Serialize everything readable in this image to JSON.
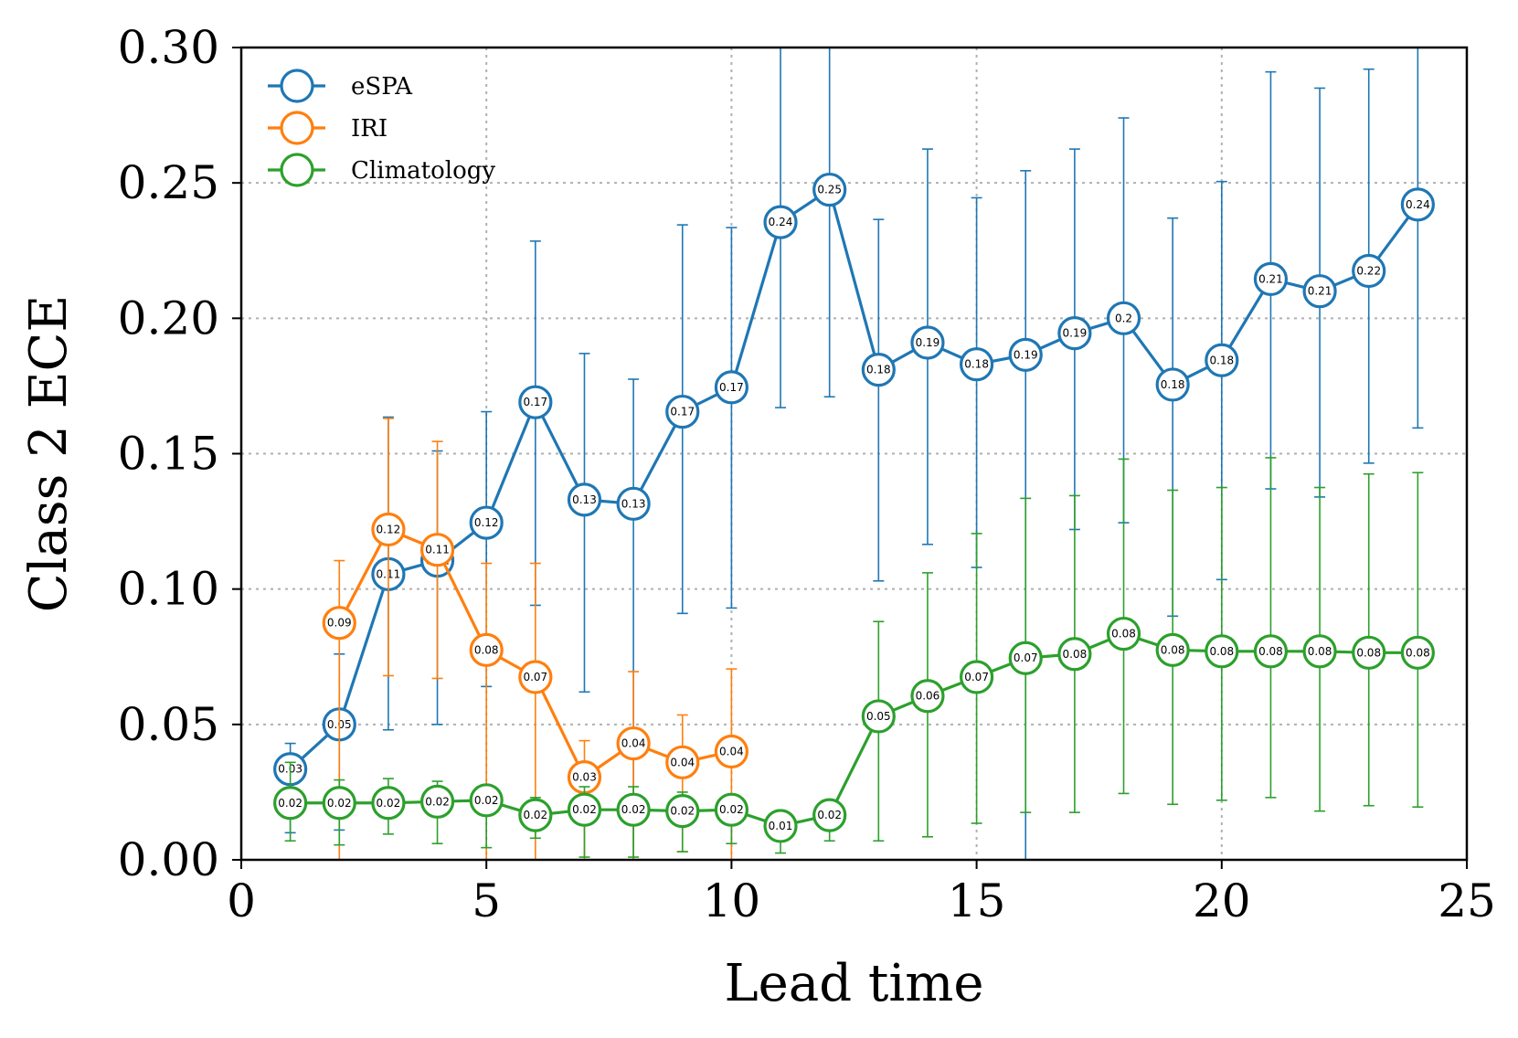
{
  "chart_data": {
    "type": "line",
    "title": "",
    "xlabel": "Lead time",
    "ylabel": "Class 2 ECE",
    "xlim": [
      0,
      25
    ],
    "ylim": [
      0,
      0.3
    ],
    "xticks": [
      0,
      5,
      10,
      15,
      20,
      25
    ],
    "xtick_labels": [
      "0",
      "5",
      "10",
      "15",
      "20",
      "25"
    ],
    "yticks": [
      0,
      0.05,
      0.1,
      0.15,
      0.2,
      0.25,
      0.3
    ],
    "ytick_labels": [
      "0.00",
      "0.05",
      "0.10",
      "0.15",
      "0.20",
      "0.25",
      "0.30"
    ],
    "grid": true,
    "legend_position": "top-left",
    "series": [
      {
        "name": "eSPA",
        "color": "#1f77b4",
        "x": [
          1,
          2,
          3,
          4,
          5,
          6,
          7,
          8,
          9,
          10,
          11,
          12,
          13,
          14,
          15,
          16,
          17,
          18,
          19,
          20,
          21,
          22,
          23,
          24
        ],
        "values": [
          0.0335,
          0.05,
          0.1055,
          0.1105,
          0.1245,
          0.169,
          0.133,
          0.1315,
          0.1655,
          0.1745,
          0.2355,
          0.2475,
          0.181,
          0.191,
          0.183,
          0.1865,
          0.1945,
          0.2,
          0.1755,
          0.1845,
          0.2145,
          0.21,
          0.2175,
          0.242
        ],
        "labels": [
          "0.03",
          "0.05",
          "0.11",
          "0.11",
          "0.12",
          "0.17",
          "0.13",
          "0.13",
          "0.17",
          "0.17",
          "0.24",
          "0.25",
          "0.18",
          "0.19",
          "0.18",
          "0.19",
          "0.19",
          "0.2",
          "0.18",
          "0.18",
          "0.21",
          "0.21",
          "0.22",
          "0.24"
        ],
        "err_low": [
          0.01,
          0.011,
          0.048,
          0.05,
          0.064,
          0.094,
          0.062,
          0.0,
          0.091,
          0.093,
          0.167,
          0.171,
          0.103,
          0.1165,
          0.108,
          0.0,
          0.122,
          0.1245,
          0.09,
          0.1035,
          0.137,
          0.134,
          0.1465,
          0.1595
        ],
        "err_high": [
          0.043,
          0.076,
          0.1635,
          0.151,
          0.1655,
          0.2285,
          0.187,
          0.1775,
          0.2345,
          0.2335,
          0.3,
          0.3,
          0.2365,
          0.2625,
          0.2445,
          0.2545,
          0.2625,
          0.274,
          0.237,
          0.2505,
          0.291,
          0.285,
          0.292,
          0.3
        ]
      },
      {
        "name": "IRI",
        "color": "#ff7f0e",
        "x": [
          2,
          3,
          4,
          5,
          6,
          7,
          8,
          9,
          10
        ],
        "values": [
          0.0875,
          0.122,
          0.1145,
          0.0775,
          0.0675,
          0.0305,
          0.043,
          0.036,
          0.04
        ],
        "labels": [
          "0.09",
          "0.12",
          "0.11",
          "0.08",
          "0.07",
          "0.03",
          "0.04",
          "0.04",
          "0.04"
        ],
        "err_low": [
          0.0,
          0.068,
          0.067,
          0.0,
          0.0,
          0.0,
          0.0,
          0.003,
          0.0
        ],
        "err_high": [
          0.1105,
          0.163,
          0.1545,
          0.1095,
          0.1095,
          0.044,
          0.0695,
          0.0535,
          0.0705
        ]
      },
      {
        "name": "Climatology",
        "color": "#2ca02c",
        "x": [
          1,
          2,
          3,
          4,
          5,
          6,
          7,
          8,
          9,
          10,
          11,
          12,
          13,
          14,
          15,
          16,
          17,
          18,
          19,
          20,
          21,
          22,
          23,
          24
        ],
        "values": [
          0.021,
          0.021,
          0.021,
          0.0215,
          0.022,
          0.0165,
          0.0185,
          0.0185,
          0.018,
          0.0185,
          0.0125,
          0.0165,
          0.053,
          0.0605,
          0.0675,
          0.0745,
          0.076,
          0.0835,
          0.0775,
          0.077,
          0.077,
          0.077,
          0.0765,
          0.0765
        ],
        "labels": [
          "0.02",
          "0.02",
          "0.02",
          "0.02",
          "0.02",
          "0.02",
          "0.02",
          "0.02",
          "0.02",
          "0.02",
          "0.01",
          "0.02",
          "0.05",
          "0.06",
          "0.07",
          "0.07",
          "0.08",
          "0.08",
          "0.08",
          "0.08",
          "0.08",
          "0.08",
          "0.08",
          "0.08"
        ],
        "err_low": [
          0.007,
          0.0055,
          0.0095,
          0.006,
          0.0045,
          0.008,
          0.001,
          0.001,
          0.003,
          0.006,
          0.0025,
          0.007,
          0.007,
          0.0085,
          0.0135,
          0.0175,
          0.0175,
          0.0245,
          0.0205,
          0.022,
          0.023,
          0.018,
          0.02,
          0.0195
        ],
        "err_high": [
          0.036,
          0.0295,
          0.03,
          0.029,
          0.022,
          0.023,
          0.027,
          0.027,
          0.025,
          0.024,
          0.014,
          0.017,
          0.088,
          0.106,
          0.1205,
          0.1335,
          0.1345,
          0.148,
          0.1365,
          0.1375,
          0.1485,
          0.1375,
          0.1425,
          0.143
        ]
      }
    ]
  }
}
